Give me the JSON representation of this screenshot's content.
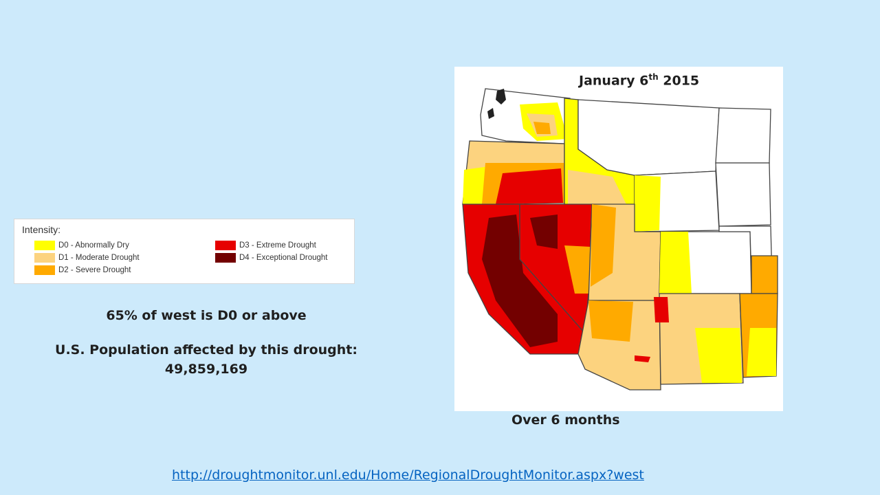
{
  "legend": {
    "title": "Intensity:",
    "items": [
      {
        "label": "D0 - Abnormally Dry",
        "color": "#ffff00"
      },
      {
        "label": "D1 - Moderate Drought",
        "color": "#fcd37f"
      },
      {
        "label": "D2 - Severe Drought",
        "color": "#ffaa00"
      },
      {
        "label": "D3 - Extreme Drought",
        "color": "#e60000"
      },
      {
        "label": "D4 - Exceptional Drought",
        "color": "#730000"
      }
    ]
  },
  "stats": {
    "coverage": "65% of west is D0 or above",
    "population_label": "U.S. Population affected by this drought:",
    "population_value": "49,859,169"
  },
  "map": {
    "date_prefix": "January 6",
    "date_suffix": "th",
    "date_year": "2015",
    "period": "Over 6 months"
  },
  "source": {
    "url": "http://droughtmonitor.unl.edu/Home/RegionalDroughtMonitor.aspx?west"
  }
}
